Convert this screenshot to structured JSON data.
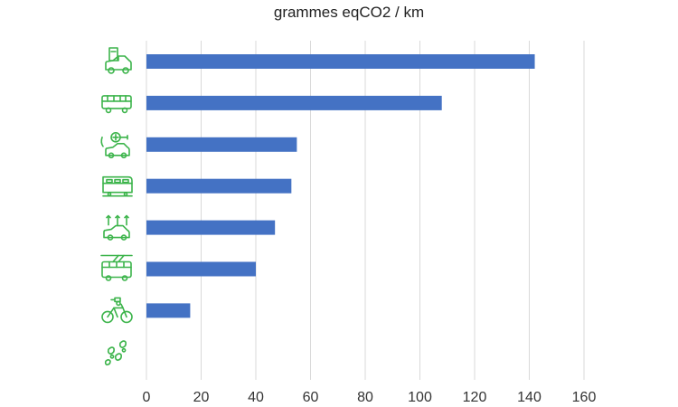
{
  "chart_data": {
    "type": "bar",
    "orientation": "horizontal",
    "title": "grammes eqCO2 / km",
    "xlabel": "",
    "ylabel": "",
    "xlim": [
      0,
      160
    ],
    "xticks": [
      "0",
      "20",
      "40",
      "60",
      "80",
      "100",
      "120",
      "140",
      "160"
    ],
    "grid": true,
    "categories": [
      "car-icon",
      "bus-icon",
      "electric-car-icon",
      "train-icon",
      "carpool-icon",
      "trolleybus-icon",
      "electric-bike-icon",
      "walking-icon"
    ],
    "values": [
      142,
      108,
      55,
      53,
      47,
      40,
      16,
      0
    ]
  },
  "colors": {
    "bar": "#4472c4",
    "icon": "#3cb44b",
    "grid": "#d9d9d9"
  }
}
